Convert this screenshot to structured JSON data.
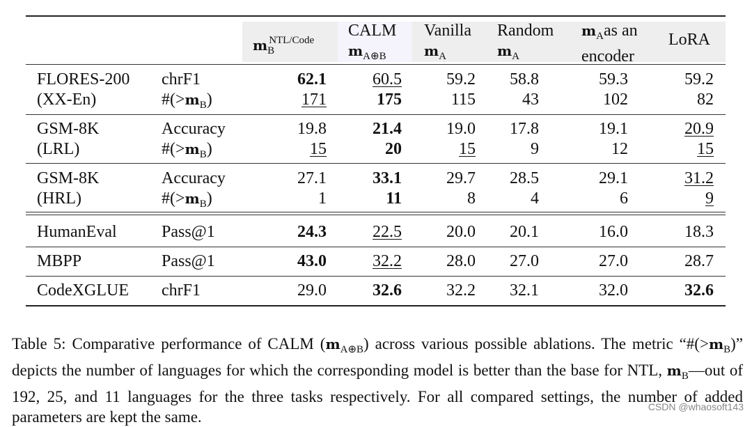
{
  "table": {
    "number": "Table 5",
    "columns": [
      {
        "id": "mB",
        "line1": "m",
        "sub": "B",
        "sup": "NTL/Code"
      },
      {
        "id": "calm",
        "line1": "CALM",
        "line2": "m",
        "sub": "A⊕B"
      },
      {
        "id": "vanilla",
        "line1": "Vanilla",
        "line2": "m",
        "sub": "A"
      },
      {
        "id": "random",
        "line1": "Random",
        "line2": "m",
        "sub": "A"
      },
      {
        "id": "encoder",
        "line1_m": "m",
        "line1_sub": "A",
        "line1_rest": "as an",
        "line2": "encoder"
      },
      {
        "id": "lora",
        "line1": "LoRA"
      }
    ],
    "groups": [
      {
        "task": "FLORES-200",
        "task2": "(XX-En)",
        "rows": [
          {
            "metric": "chrF1",
            "values": [
              "62.1",
              "60.5",
              "59.2",
              "58.8",
              "59.3",
              "59.2"
            ],
            "bold": [
              0
            ],
            "underline": [
              1
            ]
          },
          {
            "metric": "#(>m",
            "metric_sub": "B",
            "values": [
              "171",
              "175",
              "115",
              "43",
              "102",
              "82"
            ],
            "bold": [
              1
            ],
            "underline": [
              0
            ]
          }
        ]
      },
      {
        "task": "GSM-8K",
        "task2": "(LRL)",
        "rows": [
          {
            "metric": "Accuracy",
            "values": [
              "19.8",
              "21.4",
              "19.0",
              "17.8",
              "19.1",
              "20.9"
            ],
            "bold": [
              1
            ],
            "underline": [
              5
            ]
          },
          {
            "metric": "#(>m",
            "metric_sub": "B",
            "values": [
              "15",
              "20",
              "15",
              "9",
              "12",
              "15"
            ],
            "bold": [
              1
            ],
            "underline": [
              0,
              2,
              5
            ]
          }
        ]
      },
      {
        "task": "GSM-8K",
        "task2": "(HRL)",
        "rows": [
          {
            "metric": "Accuracy",
            "values": [
              "27.1",
              "33.1",
              "29.7",
              "28.5",
              "29.1",
              "31.2"
            ],
            "bold": [
              1
            ],
            "underline": [
              5
            ]
          },
          {
            "metric": "#(>m",
            "metric_sub": "B",
            "values": [
              "1",
              "11",
              "8",
              "4",
              "6",
              "9"
            ],
            "bold": [
              1
            ],
            "underline": [
              5
            ]
          }
        ]
      },
      {
        "task": "HumanEval",
        "rows": [
          {
            "metric": "Pass@1",
            "values": [
              "24.3",
              "22.5",
              "20.0",
              "20.1",
              "16.0",
              "18.3"
            ],
            "bold": [
              0
            ],
            "underline": [
              1
            ]
          }
        ]
      },
      {
        "task": "MBPP",
        "rows": [
          {
            "metric": "Pass@1",
            "values": [
              "43.0",
              "32.2",
              "28.0",
              "27.0",
              "27.0",
              "28.7"
            ],
            "bold": [
              0
            ],
            "underline": [
              1
            ]
          }
        ]
      },
      {
        "task": "CodeXGLUE",
        "rows": [
          {
            "metric": "chrF1",
            "values": [
              "29.0",
              "32.6",
              "32.2",
              "32.1",
              "32.0",
              "32.6"
            ],
            "bold": [
              1,
              5
            ],
            "underline": []
          }
        ]
      }
    ]
  },
  "caption": {
    "p1": "Table 5: Comparative performance of CALM (",
    "m1": "m",
    "m1_sub": "A⊕B",
    "p2": ") across various possible ablations. The metric “#(>",
    "m2": "m",
    "m2_sub": "B",
    "p3": ")” depicts the number of languages for which the corresponding model is better than the base for NTL, ",
    "m3": "m",
    "m3_sub": "B",
    "p4": "—out of 192, 25, and 11 languages for the three tasks respectively. For all compared settings, the number of added parameters are kept the same."
  },
  "watermark": "CSDN @whaosoft143"
}
